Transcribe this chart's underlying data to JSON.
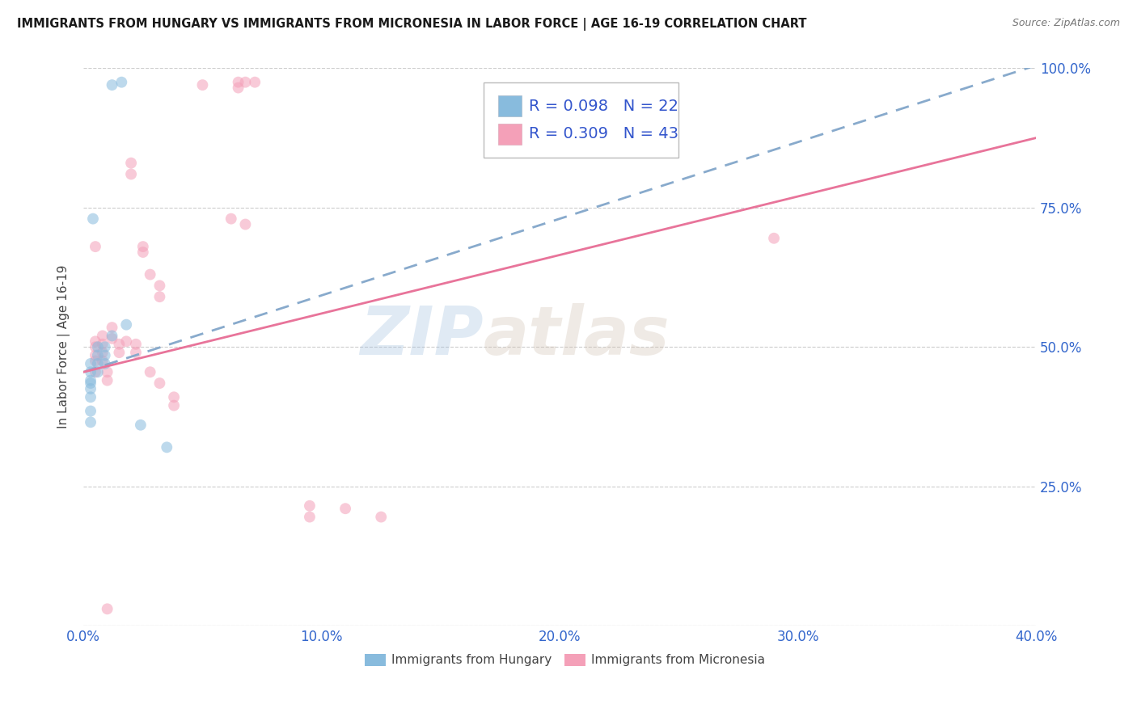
{
  "title": "IMMIGRANTS FROM HUNGARY VS IMMIGRANTS FROM MICRONESIA IN LABOR FORCE | AGE 16-19 CORRELATION CHART",
  "source": "Source: ZipAtlas.com",
  "ylabel": "In Labor Force | Age 16-19",
  "xlim": [
    0.0,
    0.4
  ],
  "ylim": [
    0.0,
    1.0
  ],
  "xticks": [
    0.0,
    0.1,
    0.2,
    0.3,
    0.4
  ],
  "xticklabels": [
    "0.0%",
    "10.0%",
    "20.0%",
    "30.0%",
    "40.0%"
  ],
  "yticks": [
    0.0,
    0.25,
    0.5,
    0.75,
    1.0
  ],
  "yticklabels": [
    "",
    "25.0%",
    "50.0%",
    "75.0%",
    "100.0%"
  ],
  "hungary_color": "#88bbdd",
  "micronesia_color": "#f4a0b8",
  "hungary_line_color": "#88aacc",
  "micronesia_line_color": "#e8749a",
  "legend_R_hungary": "R = 0.098",
  "legend_N_hungary": "N = 22",
  "legend_R_micronesia": "R = 0.309",
  "legend_N_micronesia": "N = 43",
  "legend_text_color": "#3355cc",
  "axis_tick_color": "#3366cc",
  "watermark_zip": "ZIP",
  "watermark_atlas": "atlas",
  "hungary_x": [
    0.012,
    0.016,
    0.003,
    0.003,
    0.003,
    0.003,
    0.003,
    0.003,
    0.003,
    0.003,
    0.006,
    0.006,
    0.006,
    0.006,
    0.009,
    0.009,
    0.009,
    0.012,
    0.018,
    0.024,
    0.035,
    0.004
  ],
  "hungary_y": [
    0.97,
    0.975,
    0.47,
    0.455,
    0.44,
    0.435,
    0.425,
    0.41,
    0.385,
    0.365,
    0.5,
    0.485,
    0.47,
    0.455,
    0.5,
    0.485,
    0.47,
    0.52,
    0.54,
    0.36,
    0.32,
    0.73
  ],
  "micronesia_x": [
    0.05,
    0.065,
    0.065,
    0.068,
    0.072,
    0.02,
    0.02,
    0.025,
    0.025,
    0.028,
    0.032,
    0.032,
    0.005,
    0.005,
    0.005,
    0.005,
    0.005,
    0.008,
    0.008,
    0.008,
    0.008,
    0.012,
    0.012,
    0.015,
    0.015,
    0.018,
    0.022,
    0.022,
    0.028,
    0.032,
    0.038,
    0.038,
    0.062,
    0.068,
    0.095,
    0.095,
    0.11,
    0.125,
    0.29,
    0.005,
    0.01,
    0.01,
    0.01
  ],
  "micronesia_y": [
    0.97,
    0.975,
    0.965,
    0.975,
    0.975,
    0.83,
    0.81,
    0.68,
    0.67,
    0.63,
    0.61,
    0.59,
    0.51,
    0.5,
    0.485,
    0.475,
    0.455,
    0.52,
    0.505,
    0.49,
    0.475,
    0.535,
    0.515,
    0.505,
    0.49,
    0.51,
    0.505,
    0.49,
    0.455,
    0.435,
    0.41,
    0.395,
    0.73,
    0.72,
    0.215,
    0.195,
    0.21,
    0.195,
    0.695,
    0.68,
    0.03,
    0.455,
    0.44
  ],
  "hungary_trend_x": [
    0.0,
    0.4
  ],
  "hungary_trend_y": [
    0.455,
    1.005
  ],
  "micronesia_trend_x": [
    0.0,
    0.4
  ],
  "micronesia_trend_y": [
    0.455,
    0.875
  ],
  "background_color": "#ffffff",
  "grid_color": "#cccccc",
  "marker_size": 100,
  "marker_alpha": 0.55
}
